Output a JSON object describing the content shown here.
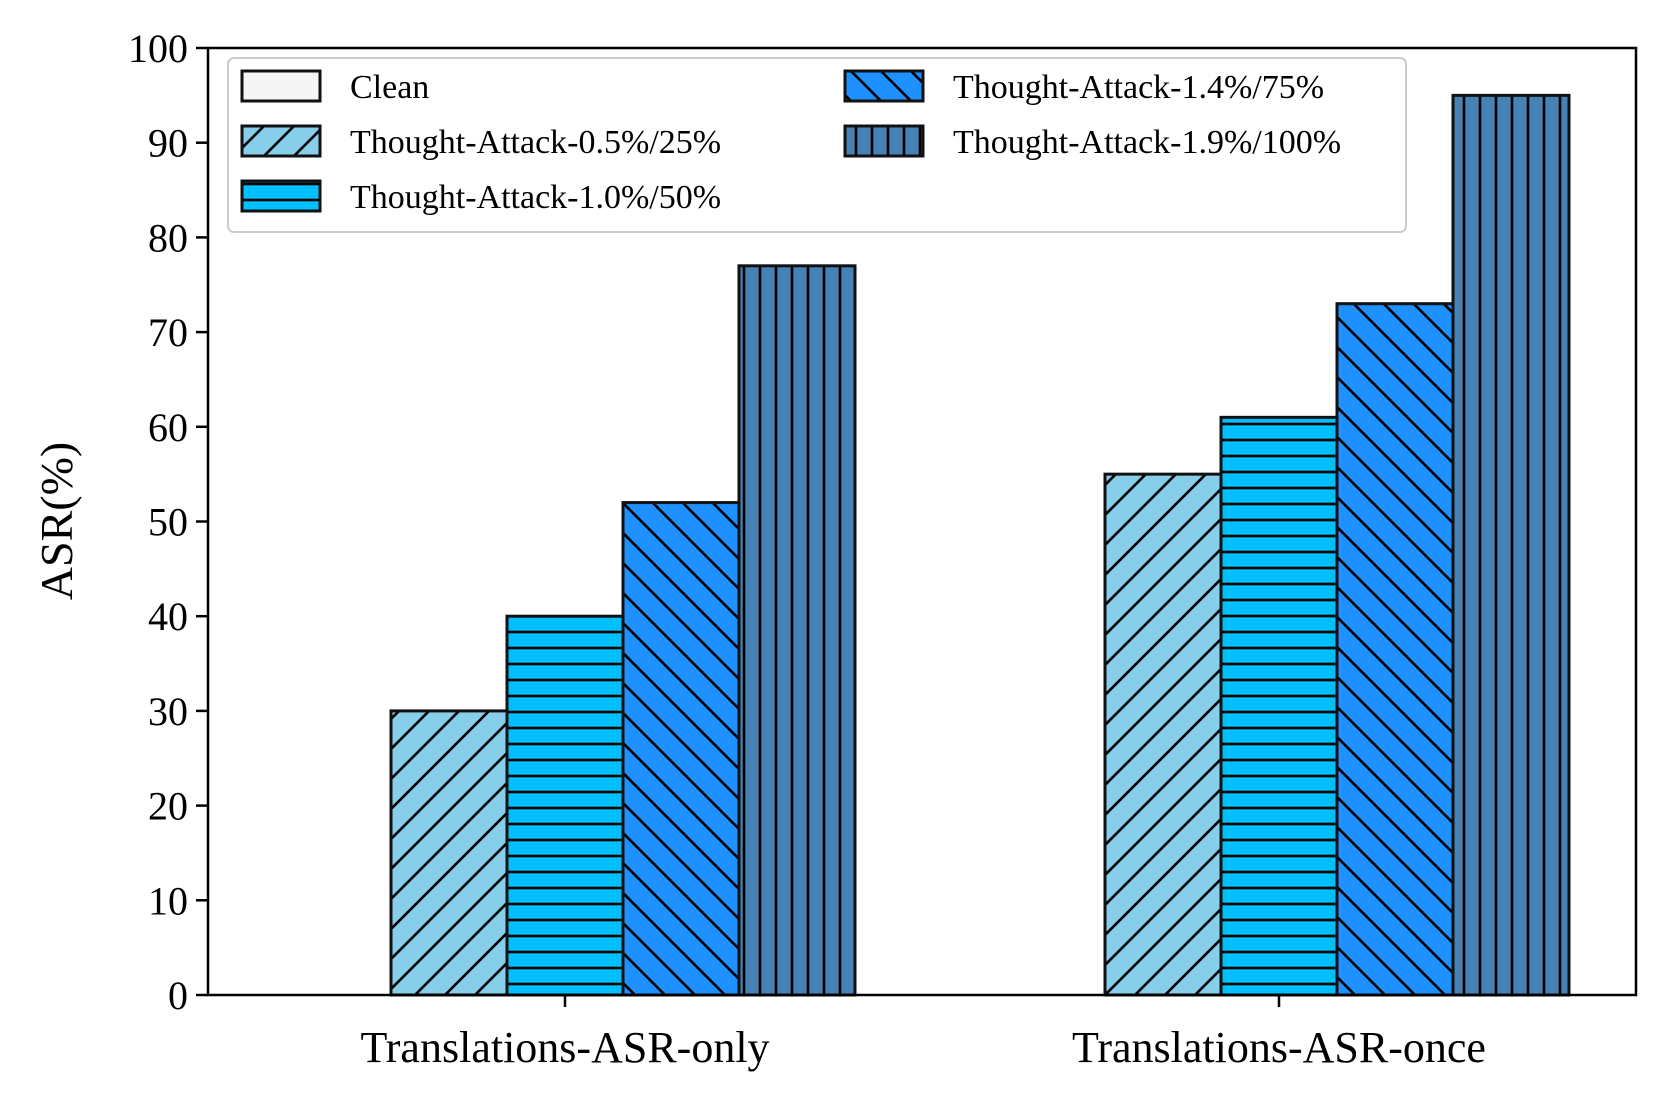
{
  "chart_data": {
    "type": "bar",
    "ylabel": "ASR(%)",
    "ylim": [
      0,
      100
    ],
    "yticks": [
      0,
      10,
      20,
      30,
      40,
      50,
      60,
      70,
      80,
      90,
      100
    ],
    "categories": [
      "Translations-ASR-only",
      "Translations-ASR-once"
    ],
    "series": [
      {
        "name": "Clean",
        "values": [
          0,
          0
        ],
        "color": "#f5f5f5",
        "hatch": "none"
      },
      {
        "name": "Thought-Attack-0.5%/25%",
        "values": [
          30,
          55
        ],
        "color": "#87ceeb",
        "hatch": "diagonal-up"
      },
      {
        "name": "Thought-Attack-1.0%/50%",
        "values": [
          40,
          61
        ],
        "color": "#00bfff",
        "hatch": "horizontal"
      },
      {
        "name": "Thought-Attack-1.4%/75%",
        "values": [
          52,
          73
        ],
        "color": "#1e90ff",
        "hatch": "diagonal-down"
      },
      {
        "name": "Thought-Attack-1.9%/100%",
        "values": [
          77,
          95
        ],
        "color": "#4682b4",
        "hatch": "vertical"
      }
    ],
    "legend": "top-left",
    "grid": false
  }
}
